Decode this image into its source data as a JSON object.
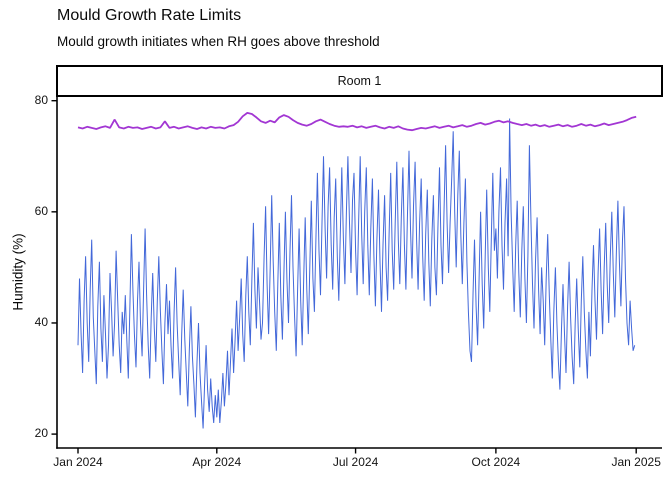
{
  "chart_data": {
    "type": "line",
    "title": "Mould Growth Rate Limits",
    "subtitle": "Mould growth initiates when RH goes above threshold",
    "facet_label": "Room 1",
    "xlabel": "",
    "ylabel": "Humidity (%)",
    "grid": false,
    "legend": "none",
    "x_domain_days": [
      0,
      366
    ],
    "ylim": [
      17.5,
      80.8
    ],
    "x_axis": {
      "ticks": [
        {
          "label": "Jan 2024",
          "day": 0
        },
        {
          "label": "Apr 2024",
          "day": 91
        },
        {
          "label": "Jul 2024",
          "day": 182
        },
        {
          "label": "Oct 2024",
          "day": 274
        },
        {
          "label": "Jan 2025",
          "day": 366
        }
      ]
    },
    "y_axis": {
      "ticks": [
        {
          "label": "80",
          "value": 80
        },
        {
          "label": "60",
          "value": 60
        },
        {
          "label": "40",
          "value": 40
        },
        {
          "label": "20",
          "value": 20
        }
      ]
    },
    "series": [
      {
        "name": "humidity",
        "color": "#4368D9",
        "stroke_width": 1,
        "x_start_day": 0,
        "x_step_days": 1,
        "values": [
          36,
          48,
          38,
          31,
          44,
          52,
          40,
          33,
          46,
          55,
          41,
          35,
          29,
          43,
          51,
          39,
          33,
          45,
          38,
          30,
          36,
          49,
          42,
          34,
          40,
          53,
          44,
          36,
          31,
          42,
          38,
          45,
          37,
          30,
          43,
          56,
          46,
          38,
          32,
          44,
          51,
          40,
          34,
          46,
          57,
          45,
          36,
          30,
          41,
          49,
          39,
          33,
          44,
          52,
          42,
          35,
          29,
          40,
          47,
          38,
          44,
          36,
          30,
          42,
          50,
          40,
          33,
          27,
          38,
          46,
          37,
          31,
          25,
          35,
          43,
          34,
          29,
          23,
          33,
          40,
          31,
          26,
          21,
          29,
          36,
          28,
          24,
          30,
          25,
          22,
          27,
          23,
          28,
          22,
          26,
          31,
          25,
          29,
          35,
          27,
          33,
          39,
          31,
          37,
          44,
          35,
          41,
          48,
          38,
          33,
          45,
          52,
          42,
          36,
          48,
          58,
          46,
          39,
          50,
          44,
          37,
          40,
          52,
          61,
          47,
          38,
          50,
          63,
          51,
          42,
          35,
          47,
          58,
          45,
          37,
          49,
          60,
          48,
          40,
          53,
          63,
          50,
          41,
          34,
          46,
          57,
          44,
          36,
          48,
          59,
          46,
          38,
          50,
          62,
          48,
          42,
          55,
          67,
          53,
          45,
          58,
          70,
          57,
          48,
          61,
          68,
          54,
          46,
          59,
          66,
          52,
          44,
          56,
          68,
          55,
          47,
          60,
          70,
          58,
          49,
          62,
          67,
          53,
          45,
          58,
          70,
          56,
          47,
          60,
          68,
          54,
          45,
          57,
          66,
          52,
          43,
          55,
          64,
          51,
          42,
          54,
          63,
          50,
          44,
          56,
          67,
          53,
          46,
          58,
          69,
          55,
          47,
          59,
          68,
          54,
          46,
          59,
          71,
          57,
          48,
          61,
          69,
          55,
          46,
          58,
          66,
          52,
          44,
          56,
          64,
          51,
          43,
          55,
          63,
          50,
          45,
          57,
          68,
          54,
          47,
          60,
          72,
          58,
          49,
          58,
          66,
          74.5,
          60,
          50,
          63,
          71,
          56,
          47,
          58,
          66,
          51,
          42,
          35,
          33,
          45,
          55,
          43,
          36,
          48,
          60,
          47,
          39,
          52,
          64,
          50,
          42,
          55,
          67,
          53,
          57,
          48,
          60,
          68,
          54,
          46,
          58,
          66,
          52,
          76.8,
          60,
          50,
          42,
          54,
          62,
          49,
          41,
          53,
          61,
          48,
          40,
          52,
          72,
          58,
          47,
          39,
          51,
          59,
          46,
          38,
          50,
          44,
          36,
          48,
          56,
          45,
          37,
          30,
          42,
          50,
          40,
          33,
          28,
          39,
          47,
          38,
          31,
          43,
          51,
          41,
          34,
          29,
          40,
          48,
          39,
          32,
          44,
          52,
          42,
          35,
          30,
          42,
          34,
          46,
          54,
          44,
          37,
          49,
          57,
          46,
          38,
          50,
          58,
          47,
          40,
          52,
          60,
          49,
          41,
          53,
          62,
          51,
          43,
          55,
          61,
          48,
          40,
          36,
          44,
          39,
          35,
          36
        ]
      },
      {
        "name": "mould-growth-threshold",
        "color": "#A236D3",
        "stroke_width": 1.8,
        "x_start_day": 0,
        "x_step_days": 3,
        "values": [
          75.2,
          75.0,
          75.3,
          75.1,
          74.9,
          75.2,
          75.4,
          75.1,
          76.6,
          75.2,
          75.0,
          75.3,
          75.1,
          75.2,
          74.9,
          75.1,
          75.3,
          75.0,
          75.2,
          76.3,
          75.1,
          75.3,
          75.0,
          75.2,
          75.4,
          75.1,
          74.9,
          75.2,
          75.0,
          75.3,
          75.1,
          75.2,
          75.0,
          75.4,
          75.6,
          76.2,
          77.2,
          77.8,
          77.6,
          77.0,
          76.3,
          76.0,
          76.4,
          76.1,
          77.0,
          77.4,
          77.1,
          76.5,
          76.0,
          75.7,
          75.5,
          75.8,
          76.3,
          76.6,
          76.2,
          75.8,
          75.5,
          75.3,
          75.4,
          75.3,
          75.5,
          75.2,
          75.4,
          75.1,
          75.3,
          75.5,
          75.2,
          75.0,
          75.3,
          75.1,
          75.4,
          75.0,
          74.8,
          74.7,
          74.9,
          75.1,
          75.0,
          75.2,
          75.4,
          75.1,
          75.3,
          75.5,
          75.2,
          75.4,
          75.6,
          75.3,
          75.5,
          75.8,
          76.0,
          75.7,
          75.9,
          76.2,
          76.4,
          76.1,
          76.3,
          76.0,
          75.8,
          75.6,
          75.8,
          75.5,
          75.7,
          75.4,
          75.6,
          75.3,
          75.5,
          75.7,
          75.4,
          75.6,
          75.3,
          75.5,
          75.8,
          75.5,
          75.7,
          75.4,
          75.6,
          75.9,
          75.6,
          75.8,
          76.0,
          76.2,
          76.5,
          76.9,
          77.1
        ]
      }
    ]
  }
}
